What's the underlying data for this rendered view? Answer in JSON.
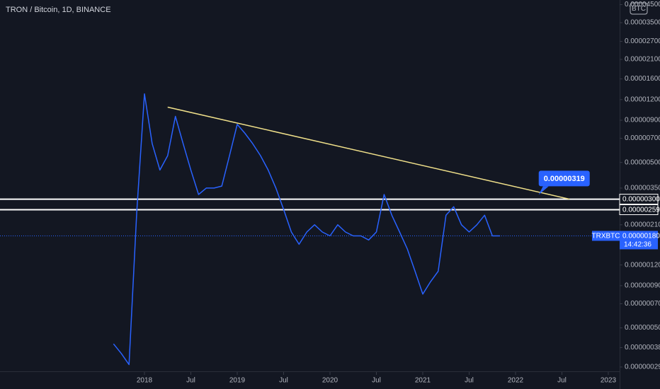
{
  "chart_data": {
    "type": "line",
    "title": "TRON / Bitcoin, 1D, BINANCE",
    "currency": "BTC",
    "log": true,
    "x": [
      "2017-09",
      "2017-10",
      "2017-11",
      "2017-12",
      "2018-01",
      "2018-02",
      "2018-03",
      "2018-04",
      "2018-05",
      "2018-06",
      "2018-07",
      "2018-08",
      "2018-09",
      "2018-10",
      "2018-11",
      "2018-12",
      "2019-01",
      "2019-02",
      "2019-03",
      "2019-04",
      "2019-05",
      "2019-06",
      "2019-07",
      "2019-08",
      "2019-09",
      "2019-10",
      "2019-11",
      "2019-12",
      "2020-01",
      "2020-02",
      "2020-03",
      "2020-04",
      "2020-05",
      "2020-06",
      "2020-07",
      "2020-08",
      "2020-09",
      "2020-10",
      "2020-11",
      "2020-12",
      "2021-01",
      "2021-02",
      "2021-03",
      "2021-04",
      "2021-05",
      "2021-06",
      "2021-07",
      "2021-08",
      "2021-09",
      "2021-10",
      "2021-11"
    ],
    "series": [
      {
        "name": "TRXBTC",
        "color": "#2962ff",
        "values": [
          4e-07,
          3.5e-07,
          3e-07,
          2.5e-06,
          1.3e-05,
          6.5e-06,
          4.5e-06,
          5.5e-06,
          9.5e-06,
          6.5e-06,
          4.5e-06,
          3.2e-06,
          3.5e-06,
          3.5e-06,
          3.6e-06,
          5.5e-06,
          8.5e-06,
          7.5e-06,
          6.5e-06,
          5.5e-06,
          4.5e-06,
          3.5e-06,
          2.6e-06,
          1.9e-06,
          1.6e-06,
          1.9e-06,
          2.1e-06,
          1.9e-06,
          1.8e-06,
          2.1e-06,
          1.9e-06,
          1.8e-06,
          1.8e-06,
          1.7e-06,
          1.9e-06,
          3.2e-06,
          2.4e-06,
          1.9e-06,
          1.5e-06,
          1.1e-06,
          8e-07,
          9.5e-07,
          1.1e-06,
          2.4e-06,
          2.7e-06,
          2.1e-06,
          1.9e-06,
          2.1e-06,
          2.4e-06,
          1.8e-06,
          1.8e-06
        ]
      }
    ],
    "ylim": [
      2.6e-07,
      4.8e-05
    ],
    "yticks": [
      {
        "value": 4.5e-05,
        "label": "0.00004500"
      },
      {
        "value": 3.5e-05,
        "label": "0.00003500"
      },
      {
        "value": 2.7e-05,
        "label": "0.00002700"
      },
      {
        "value": 2.1e-05,
        "label": "0.00002100"
      },
      {
        "value": 1.6e-05,
        "label": "0.00001600"
      },
      {
        "value": 1.2e-05,
        "label": "0.00001200"
      },
      {
        "value": 9e-06,
        "label": "0.00000900"
      },
      {
        "value": 7e-06,
        "label": "0.00000700"
      },
      {
        "value": 5e-06,
        "label": "0.00000500"
      },
      {
        "value": 3.5e-06,
        "label": "0.00000350"
      },
      {
        "value": 2.1e-06,
        "label": "0.00000210"
      },
      {
        "value": 1.2e-06,
        "label": "0.00000120"
      },
      {
        "value": 9e-07,
        "label": "0.00000090"
      },
      {
        "value": 7e-07,
        "label": "0.00000070"
      },
      {
        "value": 5e-07,
        "label": "0.00000050"
      },
      {
        "value": 3.8e-07,
        "label": "0.00000038"
      },
      {
        "value": 2.9e-07,
        "label": "0.00000029"
      }
    ],
    "xticks": [
      {
        "value": "2018-01",
        "label": "2018"
      },
      {
        "value": "2018-07",
        "label": "Jul"
      },
      {
        "value": "2019-01",
        "label": "2019"
      },
      {
        "value": "2019-07",
        "label": "Jul"
      },
      {
        "value": "2020-01",
        "label": "2020"
      },
      {
        "value": "2020-07",
        "label": "Jul"
      },
      {
        "value": "2021-01",
        "label": "2021"
      },
      {
        "value": "2021-07",
        "label": "Jul"
      },
      {
        "value": "2022-01",
        "label": "2022"
      },
      {
        "value": "2022-07",
        "label": "Jul"
      },
      {
        "value": "2023-01",
        "label": "2023"
      }
    ],
    "levels": [
      {
        "value": 3e-06,
        "label": "0.00000300"
      },
      {
        "value": 2.59e-06,
        "label": "0.00000259"
      }
    ],
    "trendline": {
      "color": "#f0e08a",
      "x": [
        "2018-04",
        "2022-08"
      ],
      "values": [
        1.08e-05,
        3e-06
      ]
    },
    "annotation": {
      "x": "2022-04",
      "value": 3.19e-06,
      "label": "0.00000319"
    },
    "last": {
      "symbol": "TRXBTC",
      "value": 1.8e-06,
      "label": "0.00000180",
      "time": "14:42:36"
    }
  }
}
